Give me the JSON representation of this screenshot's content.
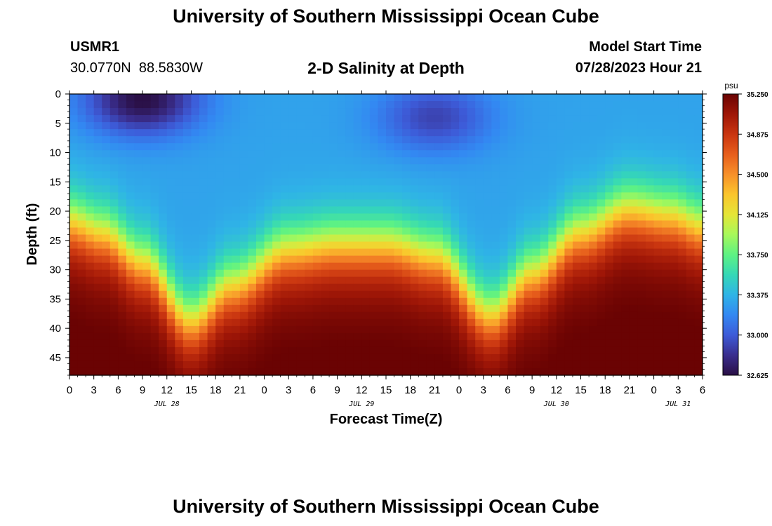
{
  "header": {
    "title": "University of Southern Mississippi Ocean Cube",
    "station_id": "USMR1",
    "station_coords": "30.0770N  88.5830W",
    "plot_title": "2-D Salinity at Depth",
    "model_start_label": "Model Start Time",
    "model_start_value": "07/28/2023 Hour 21"
  },
  "footer": {
    "title": "University of Southern Mississippi Ocean Cube"
  },
  "chart_data": {
    "type": "heatmap",
    "title": "2-D Salinity at Depth",
    "xlabel": "Forecast Time(Z)",
    "ylabel": "Depth (ft)",
    "x_range_hours": [
      0,
      78
    ],
    "x_ticks_hours": [
      0,
      3,
      6,
      9,
      12,
      15,
      18,
      21,
      24,
      27,
      30,
      33,
      36,
      39,
      42,
      45,
      48,
      51,
      54,
      57,
      60,
      63,
      66,
      69,
      72,
      75,
      78
    ],
    "x_tick_labels": [
      "0",
      "3",
      "6",
      "9",
      "12",
      "15",
      "18",
      "21",
      "0",
      "3",
      "6",
      "9",
      "12",
      "15",
      "18",
      "21",
      "0",
      "3",
      "6",
      "9",
      "12",
      "15",
      "18",
      "21",
      "0",
      "3",
      "6"
    ],
    "date_labels": [
      {
        "label": "JUL 28",
        "hour": 12
      },
      {
        "label": "JUL 29",
        "hour": 36
      },
      {
        "label": "JUL 30",
        "hour": 60
      },
      {
        "label": "JUL 31",
        "hour": 75
      }
    ],
    "y_range_ft": [
      0,
      48
    ],
    "y_ticks": [
      0,
      5,
      10,
      15,
      20,
      25,
      30,
      35,
      40,
      45
    ],
    "y_tick_labels": [
      "0",
      "5",
      "10",
      "15",
      "20",
      "25",
      "30",
      "35",
      "40",
      "45"
    ],
    "colorbar": {
      "unit": "psu",
      "min": 32.625,
      "max": 35.25,
      "ticks": [
        35.25,
        34.875,
        34.5,
        34.125,
        33.75,
        33.375,
        33.0,
        32.625
      ],
      "tick_labels": [
        "35.250",
        "34.875",
        "34.500",
        "34.125",
        "33.750",
        "33.375",
        "33.000",
        "32.625"
      ],
      "colors": [
        "#2a0f45",
        "#3a2e8e",
        "#3d5bd8",
        "#3388f2",
        "#2fb4e6",
        "#35d8b6",
        "#5ef283",
        "#a7f85a",
        "#e5e537",
        "#fbc52c",
        "#f7902a",
        "#e75e1c",
        "#c93510",
        "#9e1607",
        "#6a0303"
      ]
    },
    "field_description": "salinity vs forecast hour and depth; fresher blue surface layer, saline red bottom layer; halocline depth oscillates (shallow ~20ft near hours 3, 72; deep ~38ft near hours 15, 52)",
    "halocline_ft": [
      {
        "hour": 0,
        "depth": 22
      },
      {
        "hour": 4,
        "depth": 24
      },
      {
        "hour": 9,
        "depth": 29
      },
      {
        "hour": 15,
        "depth": 39
      },
      {
        "hour": 20,
        "depth": 33
      },
      {
        "hour": 27,
        "depth": 27
      },
      {
        "hour": 33,
        "depth": 26
      },
      {
        "hour": 39,
        "depth": 26
      },
      {
        "hour": 45,
        "depth": 28
      },
      {
        "hour": 52,
        "depth": 38
      },
      {
        "hour": 57,
        "depth": 31
      },
      {
        "hour": 63,
        "depth": 24
      },
      {
        "hour": 69,
        "depth": 20
      },
      {
        "hour": 74,
        "depth": 21
      },
      {
        "hour": 78,
        "depth": 23
      }
    ],
    "fresh_cores": [
      {
        "hour": 9,
        "depth": 1,
        "salinity": 32.62
      },
      {
        "hour": 45,
        "depth": 4,
        "salinity": 32.9
      }
    ],
    "bottom_salinity": 35.2
  }
}
